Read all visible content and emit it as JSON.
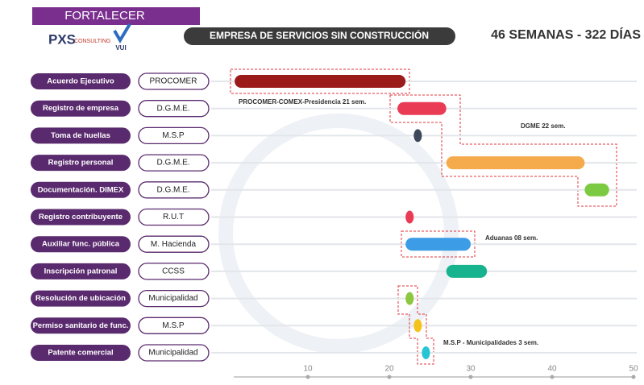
{
  "header": {
    "banner": "FORTALECER",
    "logo": "PXS",
    "logo_sub": "CONSULTING",
    "logo2": "VUI",
    "title": "EMPRESA DE SERVICIOS SIN CONSTRUCCIÓN",
    "duration": "46 SEMANAS - 322 DÍAS"
  },
  "chart_data": {
    "type": "gantt",
    "tasks": [
      "Acuerdo Ejecutivo",
      "Registro de empresa",
      "Toma de huellas",
      "Registro personal",
      "Documentación. DIMEX",
      "Registro contribuyente",
      "Auxiliar func. pública",
      "Inscripción patronal",
      "Resolución de ubicación",
      "Permiso sanitario de func.",
      "Patente comercial"
    ],
    "owners": [
      "PROCOMER",
      "D.G.M.E.",
      "M.S.P",
      "D.G.M.E.",
      "D.G.M.E.",
      "R.U.T",
      "M. Hacienda",
      "CCSS",
      "Municipalidad",
      "M.S.P",
      "Municipalidad"
    ],
    "starts": [
      1,
      21,
      23,
      27,
      44,
      22,
      22,
      27,
      22,
      23,
      24
    ],
    "ends": [
      22,
      27,
      24,
      44,
      47,
      23,
      30,
      32,
      23,
      24,
      25
    ],
    "colors": [
      "#9b1b1b",
      "#ea3b55",
      "#3e4a5c",
      "#f5aa4b",
      "#7cc942",
      "#ea3b55",
      "#3d9ce6",
      "#17b38f",
      "#8dc63f",
      "#f4c21c",
      "#27c4d6"
    ],
    "xlim": [
      0,
      50
    ],
    "xticks": [
      10,
      20,
      30,
      40,
      50
    ],
    "annotations": [
      "PROCOMER-COMEX-Presidencia  21 sem.",
      "DGME  22 sem.",
      "Aduanas  08 sem.",
      "M.S.P - Municipalidades  3 sem."
    ]
  }
}
